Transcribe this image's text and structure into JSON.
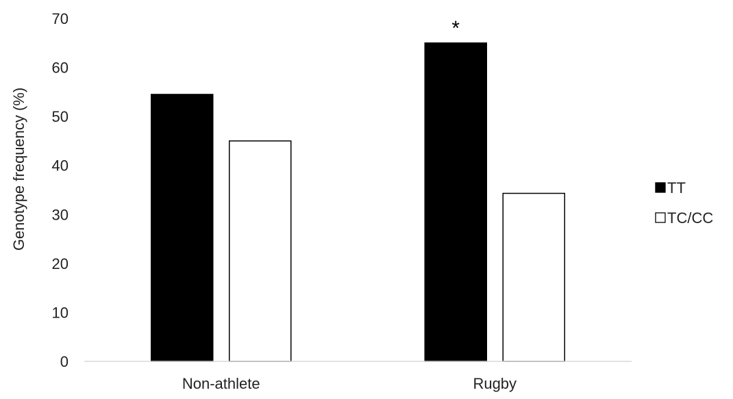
{
  "chart_data": {
    "type": "bar",
    "categories": [
      "Non-athlete",
      "Rugby"
    ],
    "series": [
      {
        "name": "TT",
        "values": [
          54.5,
          65.0
        ],
        "color": "#000000",
        "fill": "#000000"
      },
      {
        "name": "TC/CC",
        "values": [
          45.0,
          34.3
        ],
        "color": "#000000",
        "fill": "#ffffff"
      }
    ],
    "ylabel": "Genotype frequency  (%)",
    "xlabel": "",
    "ylim": [
      0,
      70
    ],
    "yticks": [
      0,
      10,
      20,
      30,
      40,
      50,
      60,
      70
    ],
    "grid": false,
    "legend_position": "right",
    "annotations": [
      {
        "text": "*",
        "category": "Rugby",
        "series": "TT"
      }
    ]
  }
}
